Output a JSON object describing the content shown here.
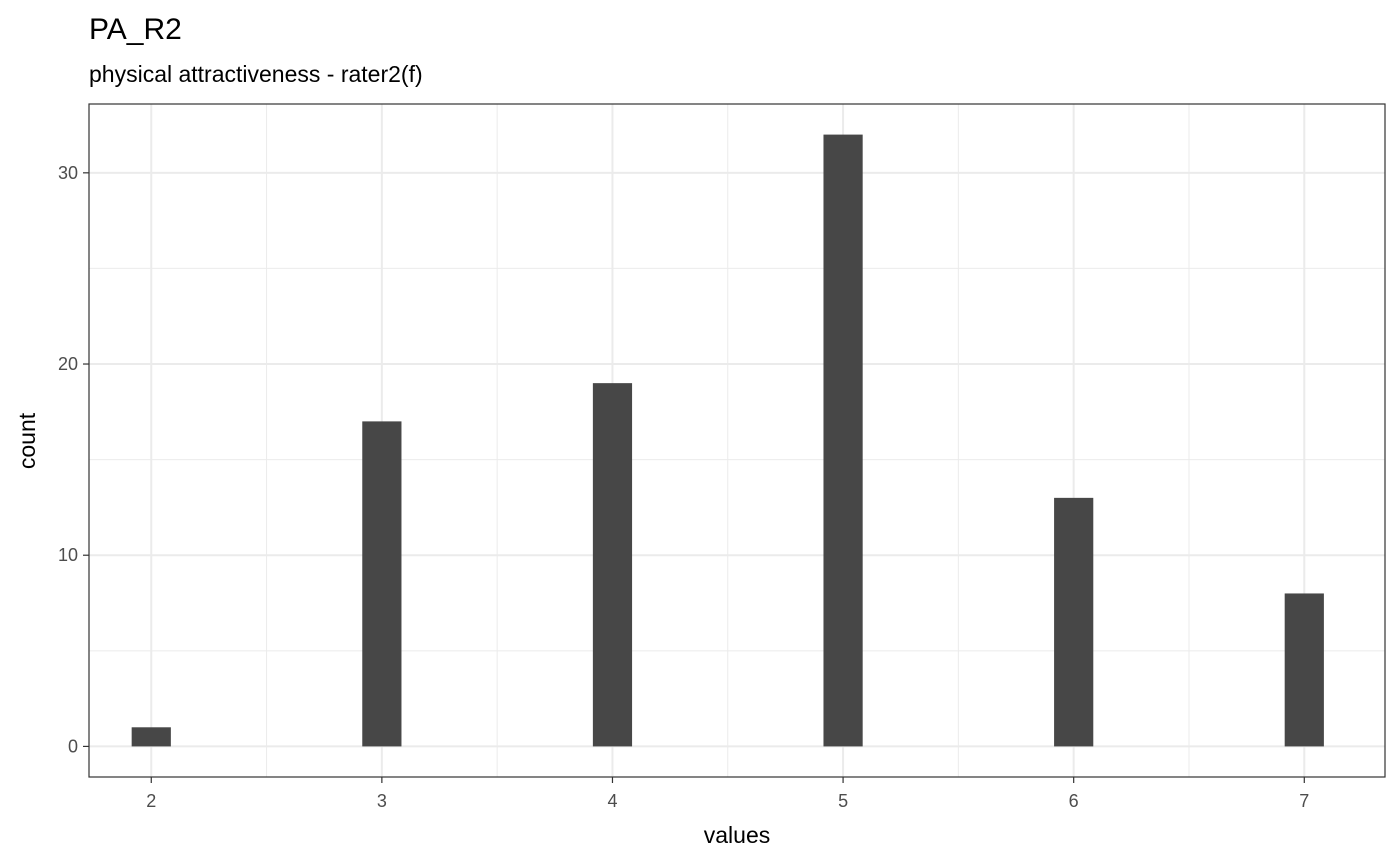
{
  "chart_data": {
    "type": "bar",
    "title": "PA_R2",
    "subtitle": "physical attractiveness - rater2(f)",
    "xlabel": "values",
    "ylabel": "count",
    "x": [
      2,
      3,
      4,
      5,
      6,
      7
    ],
    "values": [
      1,
      17,
      19,
      32,
      13,
      8
    ],
    "xlim": [
      1.73,
      7.35
    ],
    "ylim": [
      -1.6,
      33.6
    ],
    "x_ticks": [
      2,
      3,
      4,
      5,
      6,
      7
    ],
    "y_ticks": [
      0,
      10,
      20,
      30
    ],
    "grid": true,
    "bar_color": "#474747",
    "panel_border_color": "#333333",
    "grid_color": "#ebebeb"
  }
}
